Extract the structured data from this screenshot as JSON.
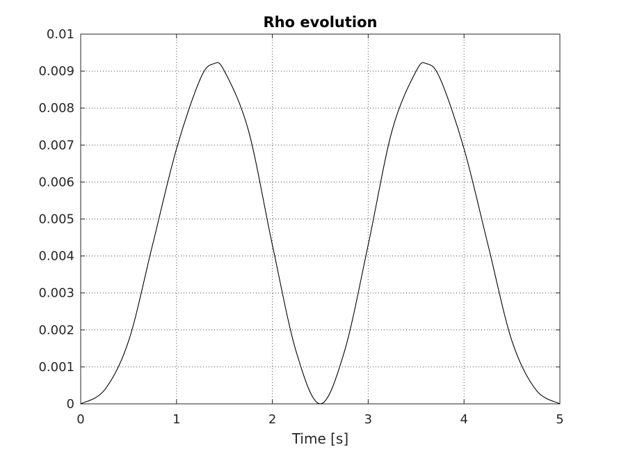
{
  "chart_data": {
    "type": "line",
    "title": "Rho evolution",
    "xlabel": "Time [s]",
    "ylabel": "",
    "xlim": [
      0,
      5
    ],
    "ylim": [
      0,
      0.01
    ],
    "x_ticks": [
      "0",
      "1",
      "2",
      "3",
      "4",
      "5"
    ],
    "y_ticks": [
      "0",
      "0.001",
      "0.002",
      "0.003",
      "0.004",
      "0.005",
      "0.006",
      "0.007",
      "0.008",
      "0.009",
      "0.01"
    ],
    "grid": true,
    "series": [
      {
        "name": "",
        "color": "#000000",
        "x": [
          0,
          0.25,
          0.5,
          0.75,
          1.0,
          1.25,
          1.39,
          1.5,
          1.75,
          2.0,
          2.25,
          2.5,
          2.75,
          3.0,
          3.25,
          3.5,
          3.61,
          3.75,
          4.0,
          4.25,
          4.5,
          4.75,
          5.0
        ],
        "y": [
          0,
          0.00038,
          0.0017,
          0.0043,
          0.0069,
          0.0088,
          0.0092,
          0.009,
          0.0074,
          0.0043,
          0.0014,
          0.0,
          0.0014,
          0.0043,
          0.0074,
          0.009,
          0.0092,
          0.0088,
          0.0069,
          0.0043,
          0.0017,
          0.00038,
          0
        ]
      }
    ]
  }
}
